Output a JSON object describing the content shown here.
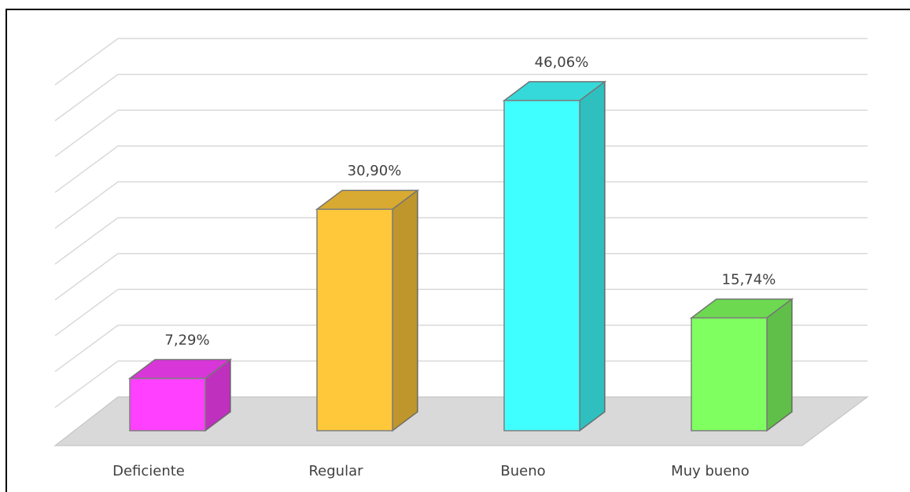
{
  "chart_data": {
    "type": "bar3d",
    "categories": [
      "Deficiente",
      "Regular",
      "Bueno",
      "Muy bueno"
    ],
    "values": [
      7.29,
      30.9,
      46.06,
      15.74
    ],
    "value_labels": [
      "7,29%",
      "30,90%",
      "46,06%",
      "15,74%"
    ],
    "colors": [
      "#ff40ff",
      "#ffc83a",
      "#40ffff",
      "#80ff60"
    ],
    "ylim": [
      0,
      50
    ],
    "yticks": [
      0,
      5,
      10,
      15,
      20,
      25,
      30,
      35,
      40,
      45,
      50
    ],
    "grid": true
  }
}
